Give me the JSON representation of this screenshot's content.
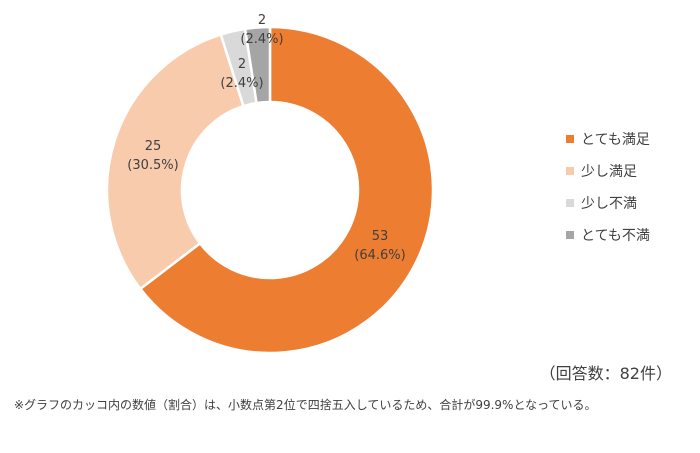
{
  "chart_data": {
    "type": "pie",
    "variant": "donut",
    "categories": [
      "とても満足",
      "少し満足",
      "少し不満",
      "とても不満"
    ],
    "values": [
      53,
      25,
      2,
      2
    ],
    "percent_labels": [
      "(64.6%)",
      "(30.5%)",
      "(2.4%)",
      "(2.4%)"
    ],
    "colors": [
      "#ED7D31",
      "#F8CBAD",
      "#D9D9D9",
      "#A5A5A5"
    ],
    "legend_position": "right",
    "start": "top",
    "direction": "clockwise"
  },
  "total_label": "（回答数：82件）",
  "footnote": "※グラフのカッコ内の数値（割合）は、小数点第2位で四捨五入しているため、合計が99.9%となっている。"
}
